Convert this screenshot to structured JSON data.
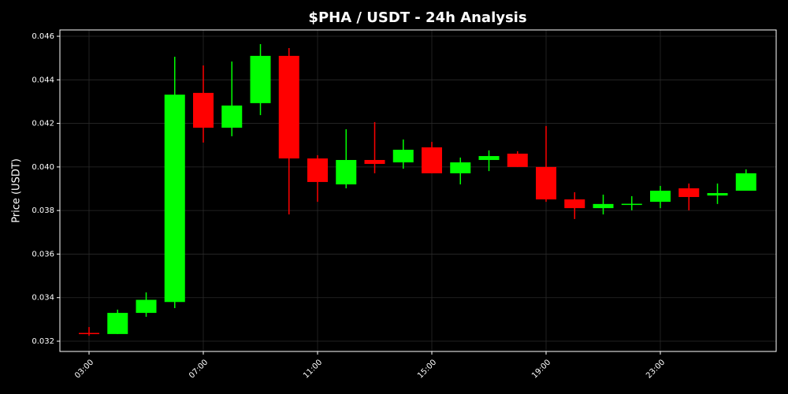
{
  "chart_data": {
    "type": "candlestick",
    "title": "$PHA / USDT - 24h Analysis",
    "y_label": "Price (USDT)",
    "categories": [
      "03:00",
      null,
      null,
      null,
      "07:00",
      null,
      null,
      null,
      "11:00",
      null,
      null,
      null,
      "15:00",
      null,
      null,
      null,
      "19:00",
      null,
      null,
      null,
      "23:00",
      null,
      null,
      null
    ],
    "open": [
      0.03238,
      0.03233,
      0.0333,
      0.0338,
      0.0434,
      0.0418,
      0.04293,
      0.0451,
      0.04039,
      0.0392,
      0.04032,
      0.04021,
      0.0409,
      0.03971,
      0.04032,
      0.04061,
      0.04,
      0.03851,
      0.03811,
      0.03828,
      0.0384,
      0.03902,
      0.03869,
      0.03891
    ],
    "high": [
      0.03265,
      0.03345,
      0.03424,
      0.04506,
      0.04466,
      0.04484,
      0.04564,
      0.04546,
      0.04054,
      0.04173,
      0.04206,
      0.04126,
      0.04115,
      0.04043,
      0.04076,
      0.04072,
      0.04188,
      0.03884,
      0.03873,
      0.03866,
      0.03913,
      0.03924,
      0.03924,
      0.03989
    ],
    "low": [
      0.03225,
      0.03233,
      0.03312,
      0.03352,
      0.04112,
      0.04141,
      0.04238,
      0.03782,
      0.0384,
      0.03902,
      0.03971,
      0.03992,
      0.03971,
      0.0392,
      0.03981,
      0.04,
      0.0384,
      0.03761,
      0.03782,
      0.03801,
      0.03811,
      0.03801,
      0.0383,
      0.03891
    ],
    "close": [
      0.03235,
      0.0333,
      0.0339,
      0.04332,
      0.0418,
      0.04282,
      0.0451,
      0.04039,
      0.03931,
      0.04032,
      0.04014,
      0.04079,
      0.03971,
      0.04021,
      0.0405,
      0.04,
      0.03851,
      0.03811,
      0.0383,
      0.03831,
      0.03891,
      0.03862,
      0.0388,
      0.03971
    ],
    "up_color": "#00ff00",
    "down_color": "#ff0000",
    "ylim": [
      0.03153,
      0.04629
    ],
    "yticks": [
      0.032,
      0.034,
      0.036,
      0.038,
      {
        "value": 0.04,
        "label": "0.040"
      },
      0.042,
      0.044,
      0.046
    ],
    "grid": true
  }
}
